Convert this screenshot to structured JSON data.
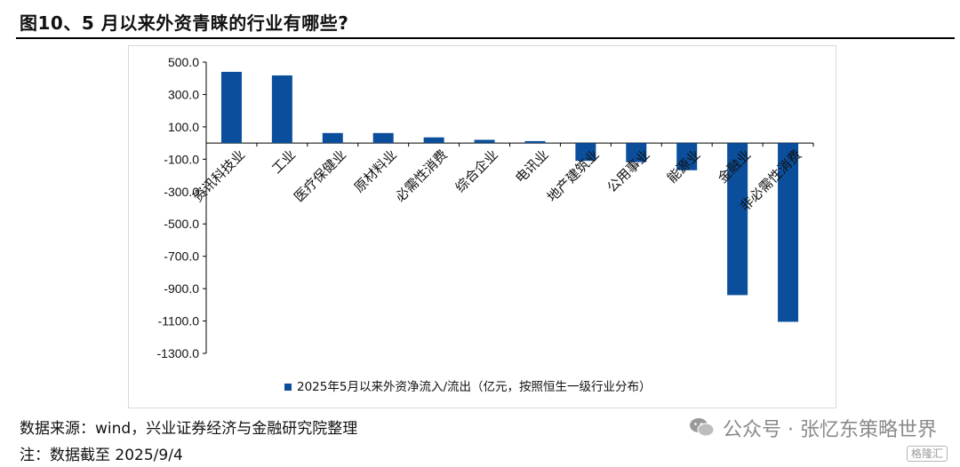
{
  "header": {
    "title": "图10、5 月以来外资青睐的行业有哪些?"
  },
  "chart_data": {
    "type": "bar",
    "categories": [
      "资讯科技业",
      "工业",
      "医疗保健业",
      "原材料业",
      "必需性消费",
      "综合企业",
      "电讯业",
      "地产建筑业",
      "公用事业",
      "能源业",
      "金融业",
      "非必需性消费"
    ],
    "series": [
      {
        "name": "2025年5月以来外资净流入/流出（亿元，按照恒生一级行业分布）",
        "values": [
          440,
          418,
          62,
          62,
          35,
          20,
          12,
          -110,
          -118,
          -168,
          -940,
          -1105
        ],
        "color": "#0b4f9c"
      }
    ],
    "y_ticks": [
      "500.0",
      "300.0",
      "100.0",
      "-100.0",
      "-300.0",
      "-500.0",
      "-700.0",
      "-900.0",
      "-1100.0",
      "-1300.0"
    ],
    "ylim": [
      -1300,
      500
    ],
    "legend_position": "bottom",
    "grid": false
  },
  "footer": {
    "source": "数据来源：wind，兴业证券经济与金融研究院整理",
    "note": "注：数据截至 2025/9/4"
  },
  "brand": {
    "text": "公众号 · 张忆东策略世界",
    "corner": "格隆汇"
  }
}
